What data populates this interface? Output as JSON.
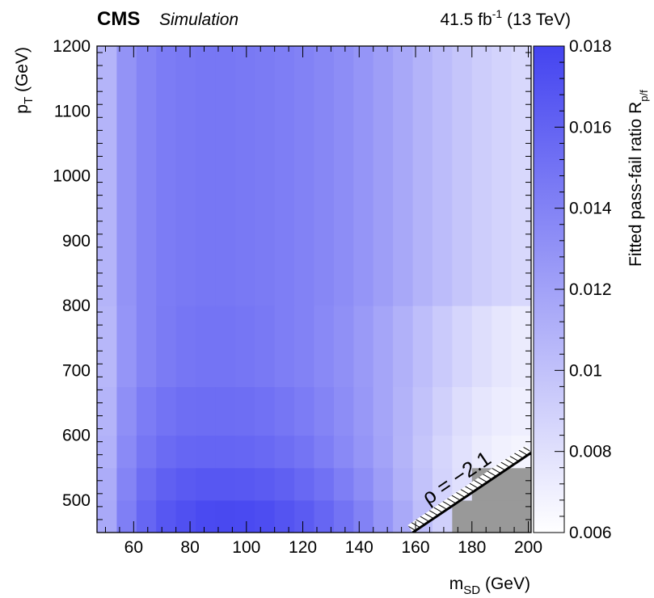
{
  "header": {
    "experiment": "CMS",
    "tag": "Simulation",
    "lumi": "41.5 fb",
    "lumi_exp": "-1",
    "energy": "(13 TeV)"
  },
  "chart_data": {
    "type": "heatmap",
    "xlabel": {
      "main": "m",
      "sub": "SD",
      "unit": "(GeV)"
    },
    "ylabel": {
      "main": "p",
      "sub": "T",
      "unit": "(GeV)"
    },
    "zlabel": {
      "main": "Fitted pass-fail ratio R",
      "sub": "p/f"
    },
    "xlim": [
      47,
      201
    ],
    "ylim": [
      450,
      1200
    ],
    "zlim": [
      0.006,
      0.018
    ],
    "x_ticks": [
      60,
      80,
      100,
      120,
      140,
      160,
      180,
      200
    ],
    "y_ticks": [
      500,
      600,
      700,
      800,
      900,
      1000,
      1100,
      1200
    ],
    "z_ticks": [
      "0.006",
      "0.008",
      "0.01",
      "0.012",
      "0.014",
      "0.016",
      "0.018"
    ],
    "x_edges": [
      47,
      54,
      61,
      68,
      75,
      82,
      89,
      96,
      103,
      110,
      117,
      124,
      131,
      138,
      145,
      152,
      159,
      166,
      173,
      180,
      187,
      194,
      201
    ],
    "y_edges": [
      450,
      500,
      550,
      600,
      675,
      800,
      1200
    ],
    "z": [
      [
        0.0115,
        0.0142,
        0.0158,
        0.0168,
        0.0172,
        0.0176,
        0.0177,
        0.0176,
        0.0174,
        0.017,
        0.0165,
        0.0158,
        0.015,
        0.014,
        0.0128,
        0.0115,
        0.0102,
        0.009,
        null,
        null,
        null,
        null
      ],
      [
        0.0113,
        0.0139,
        0.0154,
        0.0162,
        0.0166,
        0.0168,
        0.0168,
        0.0167,
        0.0165,
        0.0162,
        0.0157,
        0.0151,
        0.0143,
        0.0134,
        0.0123,
        0.0111,
        0.0099,
        0.0088,
        0.008,
        null,
        null,
        null
      ],
      [
        0.011,
        0.0135,
        0.0148,
        0.0155,
        0.0158,
        0.0159,
        0.0159,
        0.0158,
        0.0156,
        0.0153,
        0.0149,
        0.0143,
        0.0136,
        0.0128,
        0.0119,
        0.0108,
        0.0097,
        0.0087,
        0.0079,
        0.0073,
        0.0069,
        0.0067
      ],
      [
        0.0108,
        0.0132,
        0.0144,
        0.015,
        0.0153,
        0.0154,
        0.0154,
        0.0153,
        0.0151,
        0.0148,
        0.0144,
        0.0139,
        0.0133,
        0.0126,
        0.0118,
        0.0109,
        0.0099,
        0.009,
        0.0082,
        0.0076,
        0.0072,
        0.007
      ],
      [
        0.0106,
        0.0128,
        0.0139,
        0.0145,
        0.0148,
        0.0149,
        0.0149,
        0.0148,
        0.0146,
        0.0143,
        0.014,
        0.0136,
        0.0131,
        0.0125,
        0.0118,
        0.011,
        0.0102,
        0.0094,
        0.0087,
        0.0081,
        0.0076,
        0.0073
      ],
      [
        0.0108,
        0.0129,
        0.0139,
        0.0144,
        0.0146,
        0.0147,
        0.0147,
        0.0146,
        0.0145,
        0.0143,
        0.014,
        0.0137,
        0.0133,
        0.0128,
        0.0122,
        0.0116,
        0.0109,
        0.0103,
        0.0097,
        0.0092,
        0.0088,
        0.0085
      ]
    ],
    "masked_region_color": "#999999",
    "rho_line_label": "ρ = −2.1",
    "rho_line": [
      [
        159,
        450
      ],
      [
        201,
        573
      ]
    ]
  }
}
